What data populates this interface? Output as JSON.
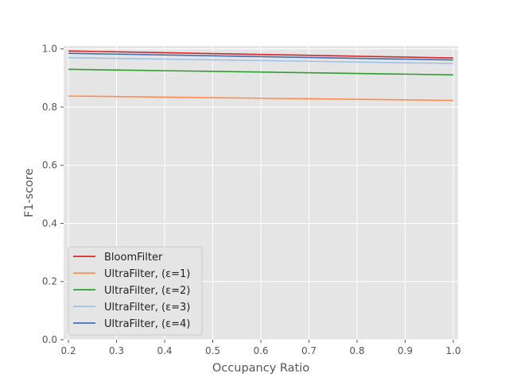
{
  "chart_data": {
    "type": "line",
    "title": "",
    "xlabel": "Occupancy Ratio",
    "ylabel": "F1-score",
    "xlim": [
      0.19,
      1.01
    ],
    "ylim": [
      0.0,
      1.01
    ],
    "xticks": [
      "0.2",
      "0.3",
      "0.4",
      "0.5",
      "0.6",
      "0.7",
      "0.8",
      "0.9",
      "1.0"
    ],
    "yticks": [
      "0.0",
      "0.2",
      "0.4",
      "0.6",
      "0.8",
      "1.0"
    ],
    "grid": true,
    "legend_position": "lower-left",
    "x": [
      0.2,
      1.0
    ],
    "series": [
      {
        "name": "BloomFilter",
        "color": "#d62728",
        "values": [
          0.993,
          0.969
        ]
      },
      {
        "name": "UltraFilter, (ε=1)",
        "color": "#ff8c4c",
        "values": [
          0.838,
          0.823
        ]
      },
      {
        "name": "UltraFilter, (ε=2)",
        "color": "#2ca02c",
        "values": [
          0.93,
          0.911
        ]
      },
      {
        "name": "UltraFilter, (ε=3)",
        "color": "#9ec2e6",
        "values": [
          0.97,
          0.95
        ]
      },
      {
        "name": "UltraFilter, (ε=4)",
        "color": "#3e6fb5",
        "values": [
          0.985,
          0.962
        ]
      }
    ]
  }
}
